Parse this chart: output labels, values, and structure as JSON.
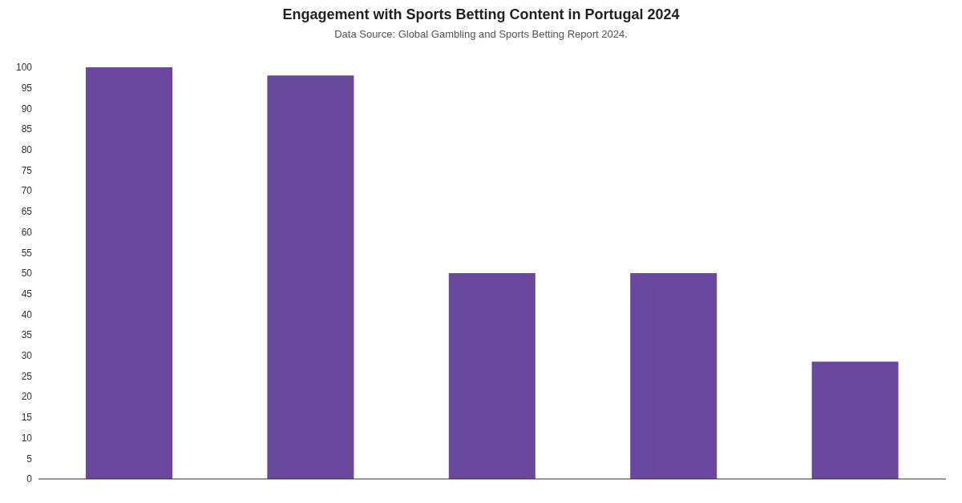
{
  "chart_data": {
    "type": "bar",
    "title": "Engagement with Sports Betting Content in Portugal 2024",
    "subtitle": "Data Source: Global Gambling and Sports Betting Report 2024.",
    "categories": [
      null,
      null,
      null,
      null,
      null
    ],
    "values": [
      100,
      98,
      50,
      50,
      28.5
    ],
    "color": "#68499e",
    "ylim": [
      0,
      100
    ],
    "yticks": [
      0,
      5,
      10,
      15,
      20,
      25,
      30,
      35,
      40,
      45,
      50,
      55,
      60,
      65,
      70,
      75,
      80,
      85,
      90,
      95,
      100
    ],
    "grid": false
  }
}
